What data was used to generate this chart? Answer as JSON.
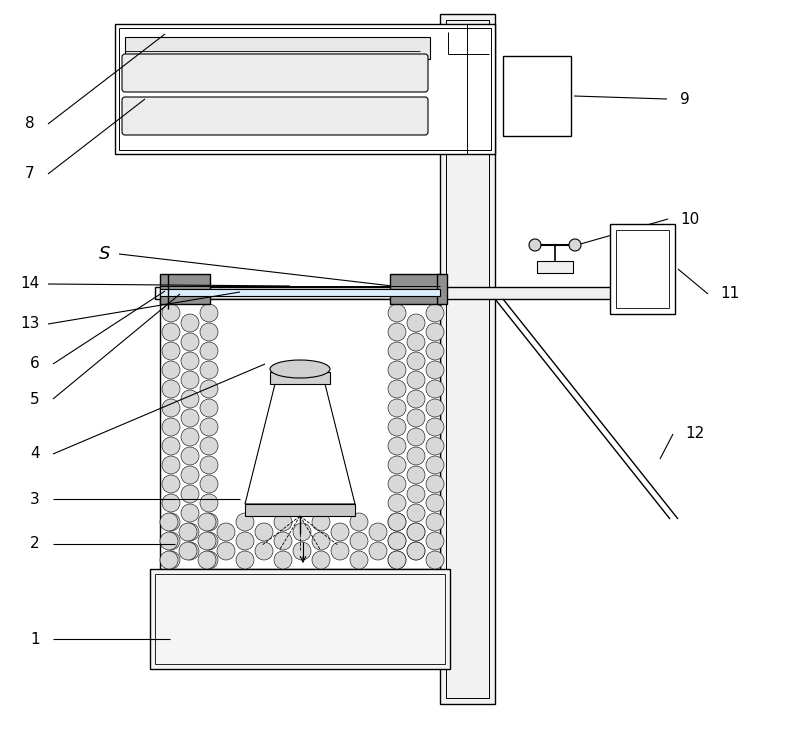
{
  "fig_width": 8.0,
  "fig_height": 7.54,
  "bg_color": "#ffffff",
  "line_color": "#000000",
  "pebble_color": "#d8d8d8",
  "gray_block": "#888888",
  "light_fill": "#f8f8f8"
}
